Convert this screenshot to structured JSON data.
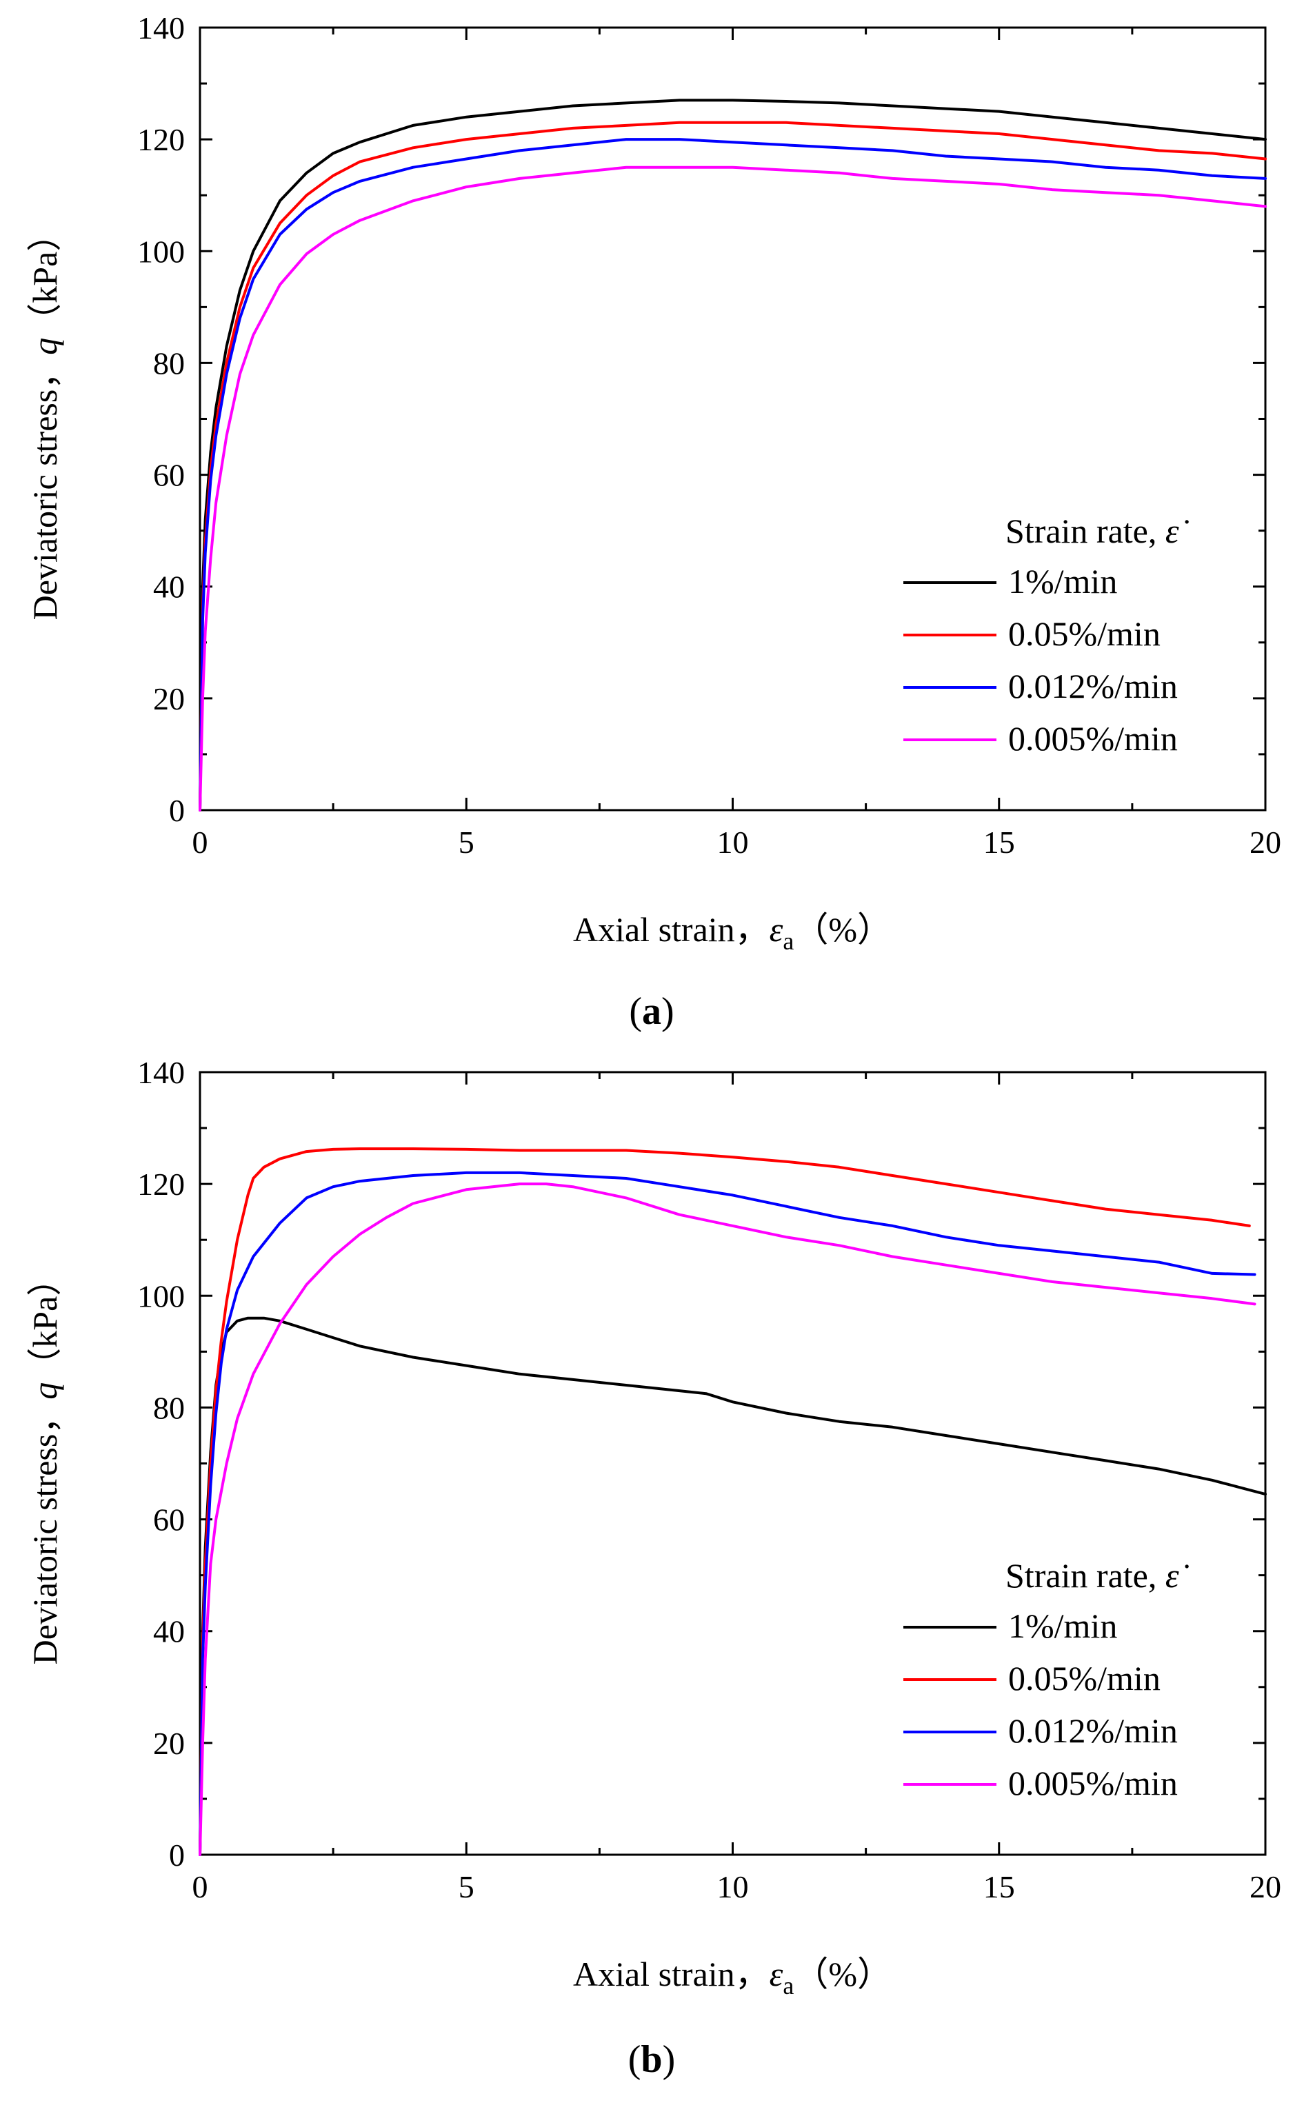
{
  "figure": {
    "panels": [
      "(a)",
      "(b)"
    ]
  },
  "chart_data": [
    {
      "type": "line",
      "panel_label": "(a)",
      "panel_letter": "a",
      "xlabel": "Axial strain，",
      "xlabel_sym": "ε",
      "xlabel_sub": "a",
      "xlabel_unit": "（%）",
      "ylabel": "Deviatoric stress，",
      "ylabel_sym": "q",
      "ylabel_unit": "（kPa）",
      "xlim": [
        0,
        20
      ],
      "ylim": [
        0,
        140
      ],
      "xticks": [
        0,
        5,
        10,
        15,
        20
      ],
      "yticks": [
        0,
        20,
        40,
        60,
        80,
        100,
        120,
        140
      ],
      "legend_title": "Strain rate,",
      "legend_symbol": "ε̇",
      "series": [
        {
          "name": "1%/min",
          "color": "#000000",
          "x": [
            0,
            0.05,
            0.1,
            0.2,
            0.3,
            0.5,
            0.75,
            1.0,
            1.5,
            2.0,
            2.5,
            3,
            4,
            5,
            6,
            7,
            8,
            9,
            10,
            11,
            12,
            13,
            14,
            15,
            16,
            17,
            18,
            19,
            20
          ],
          "y": [
            0,
            40,
            52,
            64,
            72,
            83,
            93,
            100,
            109,
            114,
            117.5,
            119.5,
            122.5,
            124,
            125,
            126,
            126.5,
            127,
            127,
            126.8,
            126.5,
            126,
            125.5,
            125,
            124,
            123,
            122,
            121,
            120
          ]
        },
        {
          "name": "0.05%/min",
          "color": "#ff0000",
          "x": [
            0,
            0.05,
            0.1,
            0.2,
            0.3,
            0.5,
            0.75,
            1.0,
            1.5,
            2.0,
            2.5,
            3,
            4,
            5,
            6,
            7,
            8,
            9,
            10,
            11,
            12,
            13,
            14,
            15,
            16,
            17,
            18,
            19,
            20
          ],
          "y": [
            0,
            36,
            48,
            61,
            69,
            80,
            90,
            97,
            105,
            110,
            113.5,
            116,
            118.5,
            120,
            121,
            122,
            122.5,
            123,
            123,
            123,
            122.5,
            122,
            121.5,
            121,
            120,
            119,
            118,
            117.5,
            116.5
          ]
        },
        {
          "name": "0.012%/min",
          "color": "#0000ff",
          "x": [
            0,
            0.05,
            0.1,
            0.2,
            0.3,
            0.5,
            0.75,
            1.0,
            1.5,
            2.0,
            2.5,
            3,
            4,
            5,
            6,
            7,
            8,
            9,
            10,
            11,
            12,
            13,
            14,
            15,
            16,
            17,
            18,
            19,
            20
          ],
          "y": [
            0,
            34,
            46,
            59,
            67,
            78,
            88,
            95,
            103,
            107.5,
            110.5,
            112.5,
            115,
            116.5,
            118,
            119,
            120,
            120,
            119.5,
            119,
            118.5,
            118,
            117,
            116.5,
            116,
            115,
            114.5,
            113.5,
            113
          ]
        },
        {
          "name": "0.005%/min",
          "color": "#ff00ff",
          "x": [
            0,
            0.05,
            0.1,
            0.2,
            0.3,
            0.5,
            0.75,
            1.0,
            1.5,
            2.0,
            2.5,
            3,
            4,
            5,
            6,
            7,
            8,
            9,
            10,
            11,
            12,
            13,
            14,
            15,
            16,
            17,
            18,
            19,
            20
          ],
          "y": [
            0,
            20,
            32,
            45,
            55,
            67,
            78,
            85,
            94,
            99.5,
            103,
            105.5,
            109,
            111.5,
            113,
            114,
            115,
            115,
            115,
            114.5,
            114,
            113,
            112.5,
            112,
            111,
            110.5,
            110,
            109,
            108
          ]
        }
      ]
    },
    {
      "type": "line",
      "panel_label": "(b)",
      "panel_letter": "b",
      "xlabel": "Axial strain，",
      "xlabel_sym": "ε",
      "xlabel_sub": "a",
      "xlabel_unit": "（%）",
      "ylabel": "Deviatoric stress，",
      "ylabel_sym": "q",
      "ylabel_unit": "（kPa）",
      "xlim": [
        0,
        20
      ],
      "ylim": [
        0,
        140
      ],
      "xticks": [
        0,
        5,
        10,
        15,
        20
      ],
      "yticks": [
        0,
        20,
        40,
        60,
        80,
        100,
        120,
        140
      ],
      "legend_title": "Strain rate,",
      "legend_symbol": "ε̇",
      "series": [
        {
          "name": "1%/min",
          "color": "#000000",
          "x": [
            0,
            0.05,
            0.1,
            0.2,
            0.3,
            0.4,
            0.5,
            0.7,
            0.9,
            1.2,
            1.5,
            2,
            2.5,
            3,
            4,
            5,
            6,
            7,
            8,
            9,
            9.5,
            10,
            11,
            12,
            13,
            14,
            15,
            16,
            17,
            18,
            19,
            20
          ],
          "y": [
            0,
            40,
            55,
            72,
            84,
            90,
            93.5,
            95.5,
            96,
            96,
            95.5,
            94,
            92.5,
            91,
            89,
            87.5,
            86,
            85,
            84,
            83,
            82.5,
            81,
            79,
            77.5,
            76.5,
            75,
            73.5,
            72,
            70.5,
            69,
            67,
            64.5
          ]
        },
        {
          "name": "0.05%/min",
          "color": "#ff0000",
          "x": [
            0,
            0.05,
            0.1,
            0.2,
            0.3,
            0.4,
            0.5,
            0.7,
            0.9,
            1.0,
            1.2,
            1.5,
            2,
            2.5,
            3,
            4,
            5,
            6,
            7,
            8,
            9,
            10,
            11,
            12,
            13,
            14,
            15,
            16,
            17,
            18,
            19,
            19.7
          ],
          "y": [
            0,
            38,
            52,
            70,
            83,
            92,
            99,
            110,
            118,
            121,
            123,
            124.5,
            125.8,
            126.2,
            126.3,
            126.3,
            126.2,
            126,
            126,
            126,
            125.5,
            124.8,
            124,
            123,
            121.5,
            120,
            118.5,
            117,
            115.5,
            114.5,
            113.5,
            112.5
          ]
        },
        {
          "name": "0.012%/min",
          "color": "#0000ff",
          "x": [
            0,
            0.05,
            0.1,
            0.2,
            0.3,
            0.4,
            0.5,
            0.7,
            1.0,
            1.5,
            2,
            2.5,
            3,
            4,
            5,
            5.5,
            6,
            7,
            8,
            9,
            10,
            11,
            12,
            13,
            14,
            15,
            16,
            17,
            18,
            19,
            19.8
          ],
          "y": [
            0,
            35,
            48,
            66,
            79,
            88,
            94,
            101,
            107,
            113,
            117.5,
            119.5,
            120.5,
            121.5,
            122,
            122,
            122,
            121.5,
            121,
            119.5,
            118,
            116,
            114,
            112.5,
            110.5,
            109,
            108,
            107,
            106,
            104,
            103.8
          ]
        },
        {
          "name": "0.005%/min",
          "color": "#ff00ff",
          "x": [
            0,
            0.05,
            0.1,
            0.2,
            0.3,
            0.5,
            0.7,
            1.0,
            1.5,
            2,
            2.5,
            3,
            3.5,
            4,
            5,
            6,
            6.5,
            7,
            8,
            9,
            10,
            11,
            12,
            13,
            14,
            15,
            16,
            17,
            18,
            19,
            19.8
          ],
          "y": [
            0,
            20,
            35,
            52,
            60,
            70,
            78,
            86,
            95,
            102,
            107,
            111,
            114,
            116.5,
            119,
            120,
            120,
            119.5,
            117.5,
            114.5,
            112.5,
            110.5,
            109,
            107,
            105.5,
            104,
            102.5,
            101.5,
            100.5,
            99.5,
            98.5
          ]
        }
      ]
    }
  ]
}
